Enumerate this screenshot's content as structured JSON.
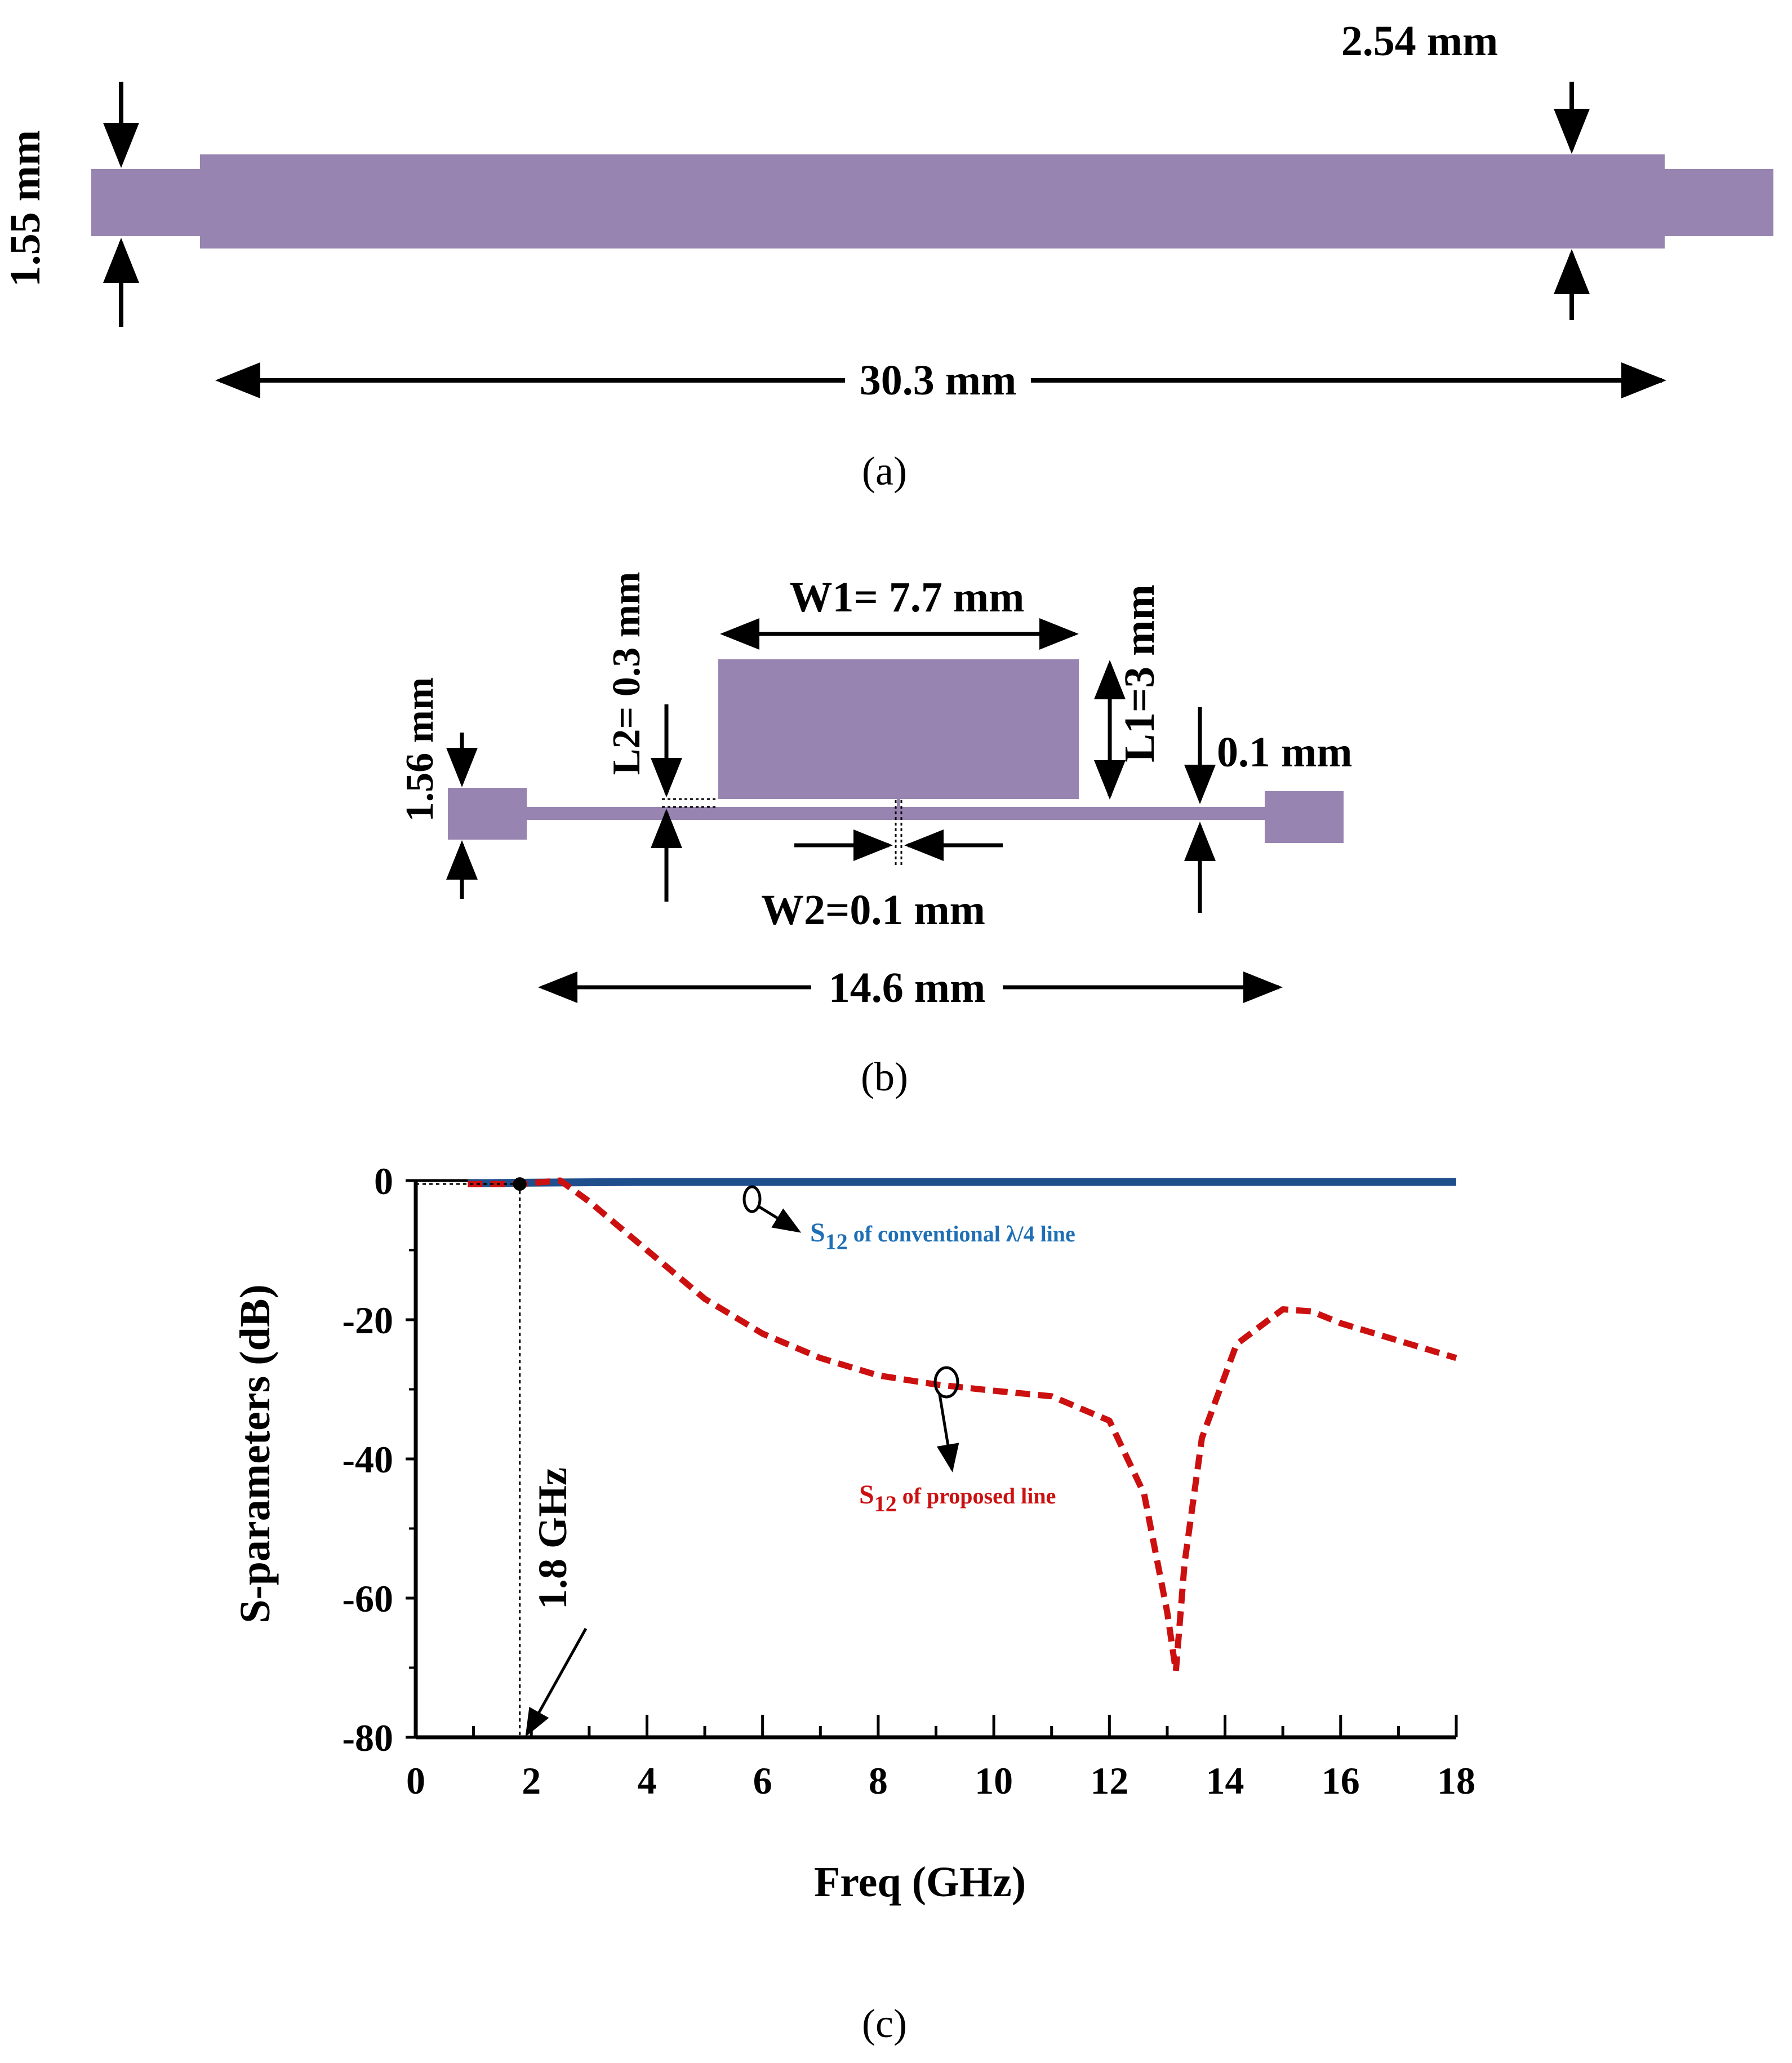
{
  "colors": {
    "strip_fill": "#9884b1",
    "conventional_line": "#1f4e8c",
    "conventional_label": "#1f6fb5",
    "proposed_line": "#cc1010",
    "proposed_label": "#cc1010",
    "ink": "#000000"
  },
  "panel_a": {
    "caption": "(a)",
    "dim_feed_width": "1.55 mm",
    "dim_line_width": "2.54 mm",
    "dim_length": "30.3 mm"
  },
  "panel_b": {
    "caption": "(b)",
    "dim_feed_width": "1.56 mm",
    "dim_l2": "L2= 0.3 mm",
    "dim_w1": "W1= 7.7 mm",
    "dim_l1": "L1=3 mm",
    "dim_line_width": "0.1 mm",
    "dim_w2": "W2=0.1 mm",
    "dim_length": "14.6 mm"
  },
  "panel_c": {
    "caption": "(c)",
    "annotation_freq": "1.8 GHz",
    "conventional_label_main": "S",
    "conventional_label_sub": "12",
    "conventional_label_rest": " of conventional  λ/4  line",
    "proposed_label_main": "S",
    "proposed_label_sub": "12",
    "proposed_label_rest": " of proposed line"
  },
  "chart_data": {
    "type": "line",
    "title": "",
    "xlabel": "Freq (GHz)",
    "ylabel": "S-parameters (dB)",
    "xlim": [
      0,
      18
    ],
    "ylim": [
      -80,
      0
    ],
    "xticks": [
      0,
      2,
      4,
      6,
      8,
      10,
      12,
      14,
      16,
      18
    ],
    "yticks": [
      0,
      -20,
      -40,
      -60,
      -80
    ],
    "grid": false,
    "series": [
      {
        "name": "S12 of conventional λ/4 line",
        "style": "solid",
        "x": [
          0.9,
          2,
          4,
          6,
          8,
          10,
          12,
          14,
          16,
          18
        ],
        "y": [
          -0.4,
          -0.3,
          -0.2,
          -0.2,
          -0.2,
          -0.2,
          -0.2,
          -0.2,
          -0.2,
          -0.2
        ]
      },
      {
        "name": "S12 of proposed line",
        "style": "dashed",
        "x": [
          0.9,
          1.8,
          2.5,
          3,
          4,
          5,
          6,
          7,
          8,
          9,
          10,
          11,
          12,
          12.6,
          13.0,
          13.15,
          13.3,
          13.6,
          14.2,
          15.0,
          15.5,
          16,
          17,
          18
        ],
        "y": [
          -0.5,
          -0.5,
          0,
          -3,
          -10,
          -17,
          -22,
          -25.5,
          -28,
          -29.3,
          -30.2,
          -31,
          -34.5,
          -45,
          -62,
          -70.5,
          -55,
          -37,
          -23.5,
          -18.5,
          -18.8,
          -20.5,
          -23,
          -25.5
        ]
      }
    ],
    "markers": [
      {
        "x": 1.8,
        "y": -0.5,
        "label": "1.8 GHz"
      }
    ]
  }
}
